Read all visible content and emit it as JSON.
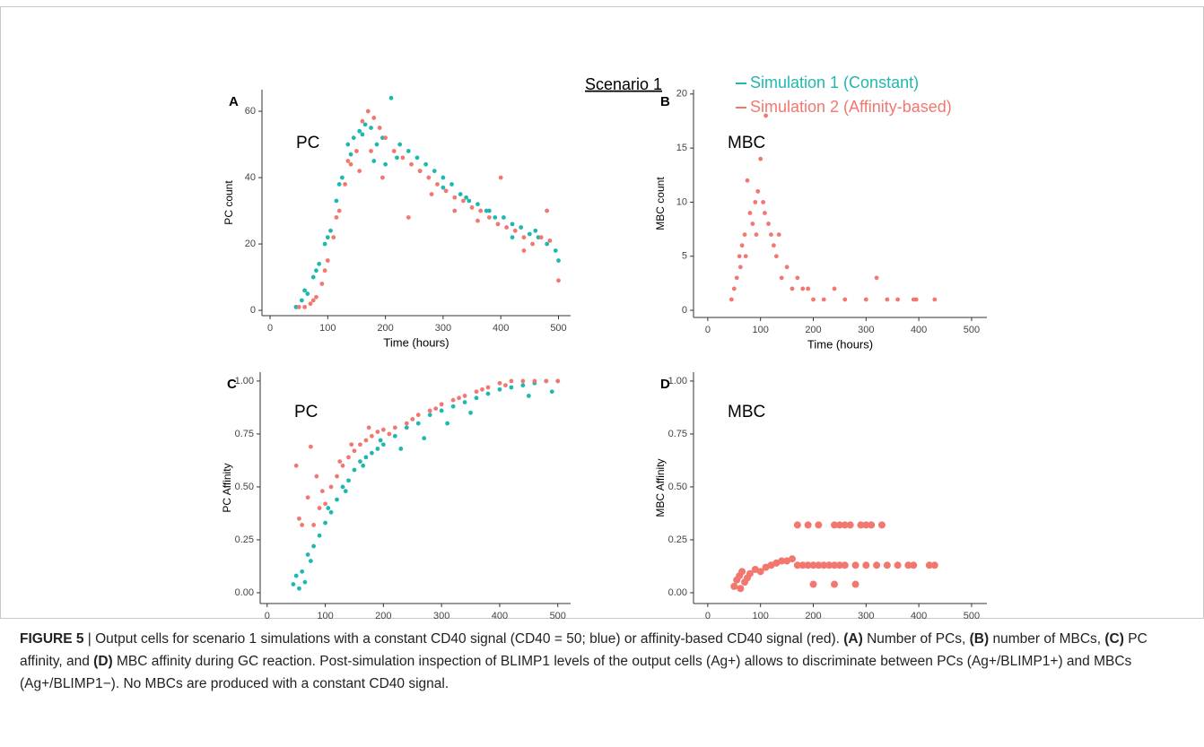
{
  "figure_title": "Scenario 1",
  "chart_data": [
    {
      "type": "scatter",
      "panel": "A",
      "inset_label": "PC",
      "xlabel": "Time (hours)",
      "ylabel": "PC count",
      "xlim": [
        -14,
        521
      ],
      "xticks": [
        0,
        100,
        200,
        300,
        400,
        500
      ],
      "ylim": [
        -1.6,
        66.5
      ],
      "yticks": [
        0,
        20,
        40,
        60
      ],
      "grid": false,
      "series": [
        {
          "name": "Simulation 1 (Constant)",
          "color": "#1fb8b0",
          "marker_size": 2.4,
          "x": [
            45,
            55,
            65,
            75,
            85,
            95,
            105,
            115,
            125,
            135,
            145,
            155,
            165,
            175,
            185,
            195,
            210,
            225,
            240,
            255,
            270,
            285,
            300,
            315,
            330,
            345,
            360,
            375,
            390,
            405,
            420,
            435,
            450,
            465,
            480,
            495,
            60,
            80,
            100,
            120,
            140,
            160,
            180,
            200,
            220,
            260,
            300,
            340,
            380,
            420,
            460,
            500
          ],
          "values": [
            1,
            3,
            5,
            10,
            14,
            20,
            24,
            33,
            40,
            50,
            52,
            54,
            56,
            55,
            50,
            52,
            64,
            50,
            48,
            46,
            44,
            42,
            40,
            38,
            35,
            33,
            32,
            30,
            28,
            28,
            26,
            25,
            23,
            22,
            20,
            18,
            6,
            12,
            22,
            38,
            47,
            53,
            45,
            44,
            46,
            42,
            37,
            34,
            30,
            22,
            24,
            15
          ]
        },
        {
          "name": "Simulation 2 (Affinity-based)",
          "color": "#f2776f",
          "marker_size": 2.4,
          "x": [
            50,
            60,
            70,
            80,
            90,
            100,
            110,
            120,
            130,
            140,
            150,
            160,
            170,
            180,
            190,
            200,
            215,
            230,
            245,
            260,
            275,
            290,
            305,
            320,
            335,
            350,
            365,
            380,
            395,
            410,
            425,
            440,
            455,
            470,
            485,
            500,
            75,
            95,
            115,
            135,
            155,
            175,
            195,
            240,
            280,
            320,
            360,
            400,
            440,
            480
          ],
          "values": [
            1,
            1,
            2,
            4,
            8,
            15,
            22,
            30,
            38,
            44,
            48,
            57,
            60,
            58,
            55,
            52,
            48,
            46,
            44,
            42,
            40,
            38,
            36,
            34,
            33,
            31,
            30,
            28,
            26,
            25,
            24,
            22,
            20,
            22,
            21,
            9,
            3,
            12,
            28,
            45,
            42,
            48,
            40,
            28,
            35,
            30,
            27,
            40,
            18,
            30
          ]
        }
      ]
    },
    {
      "type": "scatter",
      "panel": "B",
      "inset_label": "MBC",
      "xlabel": "Time (hours)",
      "ylabel": "MBC count",
      "xlim": [
        -27,
        529
      ],
      "xticks": [
        0,
        100,
        200,
        300,
        400,
        500
      ],
      "ylim": [
        -0.66,
        20.4
      ],
      "yticks": [
        0,
        5,
        10,
        15,
        20
      ],
      "grid": false,
      "series": [
        {
          "color": "#f2776f",
          "marker_size": 2.4,
          "x": [
            45,
            50,
            55,
            60,
            65,
            70,
            75,
            80,
            85,
            90,
            95,
            100,
            105,
            110,
            115,
            120,
            125,
            130,
            140,
            150,
            160,
            170,
            180,
            190,
            200,
            220,
            240,
            260,
            300,
            320,
            340,
            360,
            390,
            395,
            430,
            62,
            72,
            92,
            108,
            135
          ],
          "values": [
            1,
            2,
            3,
            5,
            6,
            7,
            12,
            9,
            8,
            10,
            11,
            14,
            10,
            18,
            8,
            7,
            6,
            5,
            3,
            4,
            2,
            3,
            2,
            2,
            1,
            1,
            2,
            1,
            1,
            3,
            1,
            1,
            1,
            1,
            1,
            4,
            5,
            7,
            9,
            7
          ]
        }
      ]
    },
    {
      "type": "scatter",
      "panel": "C",
      "inset_label": "PC",
      "xlabel": "Time (hours)",
      "ylabel": "PC Affinity",
      "xlim": [
        -12,
        522
      ],
      "xticks": [
        0,
        100,
        200,
        300,
        400,
        500
      ],
      "ylim": [
        -0.051,
        1.042
      ],
      "yticks": [
        {
          "value": 0,
          "label": "0.00"
        },
        {
          "value": 0.25,
          "label": "0.25"
        },
        {
          "value": 0.5,
          "label": "0.50"
        },
        {
          "value": 0.75,
          "label": "0.75"
        },
        {
          "value": 1,
          "label": "1.00"
        }
      ],
      "grid": false,
      "series": [
        {
          "color": "#1fb8b0",
          "marker_size": 2.4,
          "x": [
            45,
            50,
            55,
            60,
            65,
            70,
            80,
            90,
            100,
            110,
            120,
            130,
            140,
            150,
            160,
            170,
            180,
            190,
            200,
            220,
            240,
            260,
            280,
            300,
            320,
            340,
            360,
            380,
            400,
            420,
            440,
            460,
            480,
            500,
            75,
            105,
            135,
            165,
            195,
            230,
            270,
            310,
            350,
            450,
            490
          ],
          "values": [
            0.04,
            0.08,
            0.02,
            0.1,
            0.05,
            0.18,
            0.22,
            0.27,
            0.33,
            0.38,
            0.44,
            0.5,
            0.53,
            0.58,
            0.62,
            0.64,
            0.66,
            0.68,
            0.7,
            0.74,
            0.78,
            0.8,
            0.84,
            0.86,
            0.88,
            0.9,
            0.92,
            0.94,
            0.96,
            0.97,
            0.98,
            0.99,
            1.0,
            1.0,
            0.15,
            0.4,
            0.48,
            0.6,
            0.72,
            0.68,
            0.73,
            0.8,
            0.85,
            0.93,
            0.95
          ]
        },
        {
          "color": "#f2776f",
          "marker_size": 2.4,
          "x": [
            50,
            55,
            60,
            70,
            75,
            80,
            90,
            100,
            110,
            120,
            130,
            140,
            150,
            160,
            170,
            180,
            190,
            200,
            220,
            240,
            260,
            280,
            300,
            320,
            340,
            360,
            380,
            400,
            420,
            440,
            460,
            480,
            500,
            85,
            95,
            125,
            145,
            175,
            210,
            250,
            290,
            330,
            370,
            410
          ],
          "values": [
            0.6,
            0.35,
            0.32,
            0.45,
            0.69,
            0.32,
            0.4,
            0.42,
            0.5,
            0.55,
            0.6,
            0.64,
            0.67,
            0.7,
            0.72,
            0.74,
            0.76,
            0.77,
            0.78,
            0.8,
            0.84,
            0.86,
            0.89,
            0.91,
            0.93,
            0.95,
            0.97,
            0.99,
            1.0,
            1.0,
            1.0,
            1.0,
            1.0,
            0.55,
            0.48,
            0.62,
            0.7,
            0.78,
            0.75,
            0.82,
            0.87,
            0.92,
            0.96,
            0.98
          ]
        }
      ]
    },
    {
      "type": "scatter",
      "panel": "D",
      "inset_label": "MBC",
      "xlabel": "Time (hours)",
      "ylabel": "MBC Affinity",
      "xlim": [
        -27,
        529
      ],
      "xticks": [
        0,
        100,
        200,
        300,
        400,
        500
      ],
      "ylim": [
        -0.051,
        1.042
      ],
      "yticks": [
        {
          "value": 0,
          "label": "0.00"
        },
        {
          "value": 0.25,
          "label": "0.25"
        },
        {
          "value": 0.5,
          "label": "0.50"
        },
        {
          "value": 0.75,
          "label": "0.75"
        },
        {
          "value": 1,
          "label": "1.00"
        }
      ],
      "grid": false,
      "series": [
        {
          "color": "#f2776f",
          "marker_size": 4,
          "x": [
            50,
            55,
            60,
            62,
            65,
            70,
            75,
            80,
            90,
            100,
            110,
            120,
            130,
            140,
            150,
            160,
            170,
            180,
            190,
            200,
            210,
            220,
            230,
            240,
            250,
            260,
            280,
            300,
            320,
            340,
            360,
            380,
            390,
            420,
            430,
            170,
            190,
            210,
            240,
            250,
            260,
            270,
            290,
            300,
            310,
            330,
            200,
            240,
            280
          ],
          "values": [
            0.03,
            0.06,
            0.08,
            0.02,
            0.1,
            0.05,
            0.07,
            0.09,
            0.11,
            0.1,
            0.12,
            0.13,
            0.14,
            0.15,
            0.15,
            0.16,
            0.13,
            0.13,
            0.13,
            0.13,
            0.13,
            0.13,
            0.13,
            0.13,
            0.13,
            0.13,
            0.13,
            0.13,
            0.13,
            0.13,
            0.13,
            0.13,
            0.13,
            0.13,
            0.13,
            0.32,
            0.32,
            0.32,
            0.32,
            0.32,
            0.32,
            0.32,
            0.32,
            0.32,
            0.32,
            0.32,
            0.04,
            0.04,
            0.04
          ]
        }
      ]
    }
  ],
  "caption": [
    {
      "text": "FIGURE 5",
      "bold": true
    },
    {
      "text": " | Output cells for scenario 1 simulations with a constant CD40 signal (CD40 = 50; blue) or affinity-based CD40 signal (red). ",
      "bold": false
    },
    {
      "text": "(A)",
      "bold": true
    },
    {
      "text": " Number of PCs, ",
      "bold": false
    },
    {
      "text": "(B)",
      "bold": true
    },
    {
      "text": " number of MBCs, ",
      "bold": false
    },
    {
      "text": "(C)",
      "bold": true
    },
    {
      "text": " PC affinity, and ",
      "bold": false
    },
    {
      "text": "(D)",
      "bold": true
    },
    {
      "text": " MBC affinity during GC reaction. Post-simulation inspection of BLIMP1 levels of the output cells (Ag+) allows to discriminate between PCs (Ag+/BLIMP1+) and MBCs (Ag+/BLIMP1−). No MBCs are produced with a constant CD40 signal.",
      "bold": false
    }
  ]
}
